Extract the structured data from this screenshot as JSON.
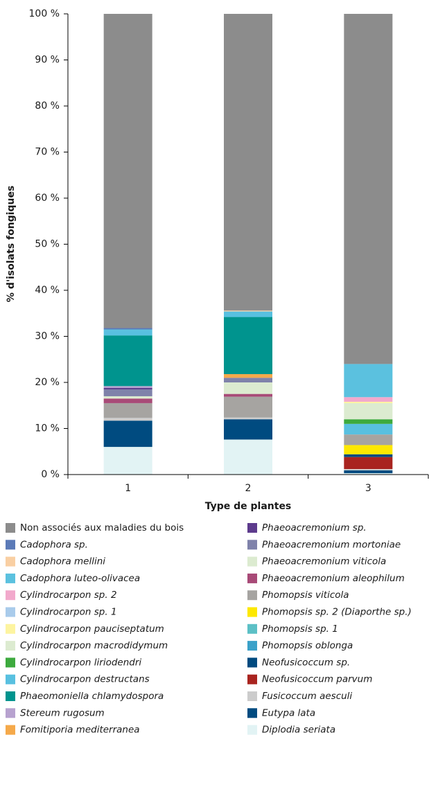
{
  "chart_data": {
    "type": "stacked_bar",
    "x_label": "Type de plantes",
    "y_label": "% d'isolats fongiques",
    "categories": [
      "1",
      "2",
      "3"
    ],
    "ylim": [
      0,
      100
    ],
    "yticks": [
      {
        "value": 0,
        "label": "0 %"
      },
      {
        "value": 10,
        "label": "10 %"
      },
      {
        "value": 20,
        "label": "20 %"
      },
      {
        "value": 30,
        "label": "30 %"
      },
      {
        "value": 40,
        "label": "40 %"
      },
      {
        "value": 50,
        "label": "50 %"
      },
      {
        "value": 60,
        "label": "60 %"
      },
      {
        "value": 70,
        "label": "70 %"
      },
      {
        "value": 80,
        "label": "80 %"
      },
      {
        "value": 90,
        "label": "90 %"
      },
      {
        "value": 100,
        "label": "100 %"
      }
    ],
    "series": [
      {
        "name": "Non associés aux maladies du bois",
        "color": "#8c8c8c",
        "values": [
          68.2,
          64.4,
          76
        ]
      },
      {
        "name": "Cadophora sp.",
        "color": "#5b7ab8",
        "values": [
          0.3,
          0,
          0
        ]
      },
      {
        "name": "Cadophora mellini",
        "color": "#f9cfa3",
        "values": [
          0,
          0.2,
          0
        ]
      },
      {
        "name": "Cadophora luteo-olivacea",
        "color": "#5bc1df",
        "values": [
          0.3,
          0,
          7.2
        ]
      },
      {
        "name": "Cylindrocarpon sp. 2",
        "color": "#f2a9cc",
        "values": [
          0,
          0,
          1
        ]
      },
      {
        "name": "Cylindrocarpon sp. 1",
        "color": "#a9cbeb",
        "values": [
          0,
          0,
          0
        ]
      },
      {
        "name": "Cylindrocarpon pauciseptatum",
        "color": "#fdf4a0",
        "values": [
          0,
          0,
          0.3
        ]
      },
      {
        "name": "Cylindrocarpon macrodidymum",
        "color": "#dcebd0",
        "values": [
          0,
          0,
          3.5
        ]
      },
      {
        "name": "Cylindrocarpon liriodendri",
        "color": "#3daa3e",
        "values": [
          0,
          0,
          1
        ]
      },
      {
        "name": "Cylindrocarpon destructans",
        "color": "#58c0e0",
        "values": [
          1,
          1.2,
          2.3
        ]
      },
      {
        "name": "Phaeomoniella chlamydospora",
        "color": "#00948e",
        "values": [
          11,
          12.4,
          0
        ]
      },
      {
        "name": "Stereum rugosum",
        "color": "#b7a2cf",
        "values": [
          0.4,
          0,
          0
        ]
      },
      {
        "name": "Fomitiporia mediterranea",
        "color": "#f5a94a",
        "values": [
          0,
          0.8,
          0
        ]
      },
      {
        "name": "Phaeoacremonium sp.",
        "color": "#5d3b8d",
        "values": [
          0.3,
          0,
          0
        ]
      },
      {
        "name": "Phaeoacremonium mortoniae",
        "color": "#7f82aa",
        "values": [
          1.5,
          1,
          0
        ]
      },
      {
        "name": "Phaeoacremonium viticola",
        "color": "#dcebd0",
        "values": [
          0.5,
          2.5,
          0
        ]
      },
      {
        "name": "Phaeoacremonium aleophilum",
        "color": "#a84a77",
        "values": [
          1,
          0.6,
          0
        ]
      },
      {
        "name": "Phomopsis viticola",
        "color": "#a6a4a1",
        "values": [
          3.2,
          4.5,
          2.3
        ]
      },
      {
        "name": "Phomopsis sp. 2 (Diaporthe sp.)",
        "color": "#fde800",
        "values": [
          0,
          0,
          2
        ]
      },
      {
        "name": "Phomopsis sp. 1",
        "color": "#5cc0c6",
        "values": [
          0,
          0,
          0
        ]
      },
      {
        "name": "Phomopsis oblonga",
        "color": "#3aa1c9",
        "values": [
          0,
          0,
          0
        ]
      },
      {
        "name": "Neofusicoccum sp.",
        "color": "#004a7f",
        "values": [
          0,
          0,
          0.6
        ]
      },
      {
        "name": "Neofusicoccum parvum",
        "color": "#a9241f",
        "values": [
          0,
          0,
          2.6
        ]
      },
      {
        "name": "Fusicoccum aesculi",
        "color": "#cccccc",
        "values": [
          0.6,
          0.4,
          0.3
        ]
      },
      {
        "name": "Eutypa lata",
        "color": "#004b80",
        "values": [
          5.7,
          4.4,
          0.6
        ]
      },
      {
        "name": "Diplodia seriata",
        "color": "#e2f3f4",
        "values": [
          6,
          7.6,
          0.3
        ]
      }
    ]
  }
}
